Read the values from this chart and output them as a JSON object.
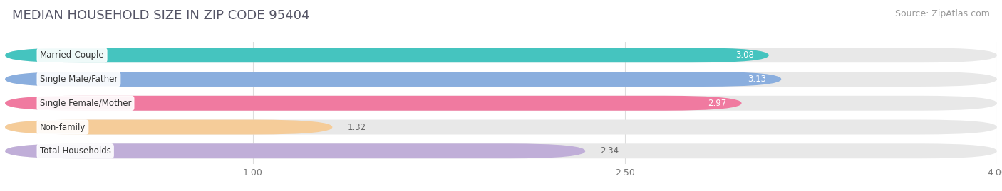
{
  "title": "MEDIAN HOUSEHOLD SIZE IN ZIP CODE 95404",
  "source": "Source: ZipAtlas.com",
  "categories": [
    "Married-Couple",
    "Single Male/Father",
    "Single Female/Mother",
    "Non-family",
    "Total Households"
  ],
  "values": [
    3.08,
    3.13,
    2.97,
    1.32,
    2.34
  ],
  "bar_colors": [
    "#45c4bf",
    "#8aaede",
    "#f07aa0",
    "#f5cc99",
    "#c0aed8"
  ],
  "track_color": "#e8e8e8",
  "xlim": [
    0,
    4.0
  ],
  "xticks": [
    1.0,
    2.5,
    4.0
  ],
  "label_value_colors": [
    "white",
    "white",
    "white",
    "#666666",
    "#666666"
  ],
  "bar_height": 0.62,
  "figsize": [
    14.06,
    2.69
  ],
  "dpi": 100,
  "title_fontsize": 13,
  "source_fontsize": 9,
  "label_fontsize": 8.5,
  "value_fontsize": 8.5,
  "tick_fontsize": 9,
  "bg_color": "#ffffff",
  "title_color": "#555566",
  "source_color": "#999999"
}
